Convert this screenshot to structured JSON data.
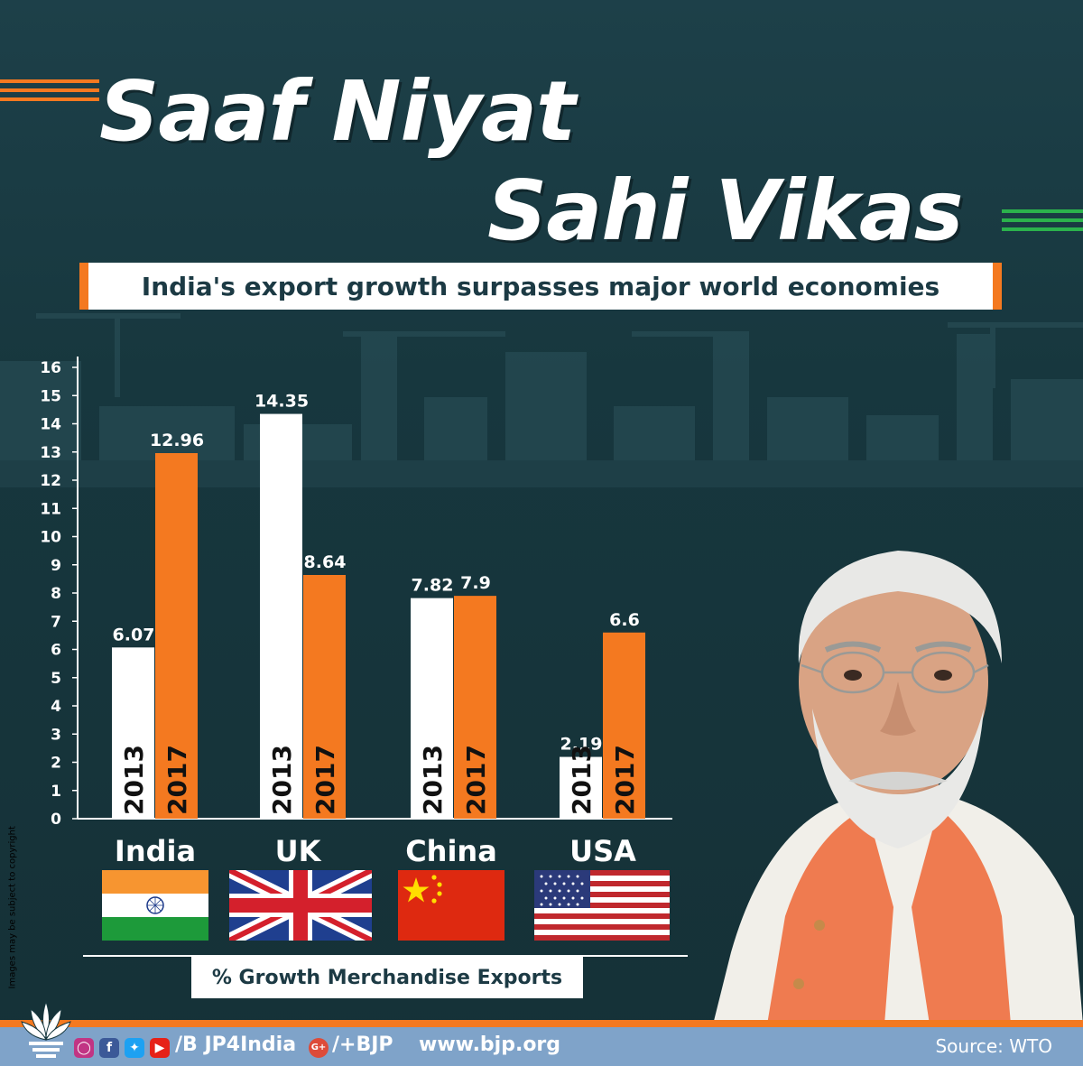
{
  "header": {
    "title_line1": "Saaf Niyat",
    "title_line2": "Sahi Vikas",
    "subtitle": "India's export growth surpasses major world economies"
  },
  "colors": {
    "background": "#17383f",
    "bar_2013": "#ffffff",
    "bar_2017": "#f47920",
    "accent_green": "#2bb24c",
    "footer": "#7fa3c9"
  },
  "chart_data": {
    "type": "bar",
    "categories": [
      "India",
      "UK",
      "China",
      "USA"
    ],
    "series": [
      {
        "name": "2013",
        "values": [
          6.07,
          14.35,
          7.82,
          2.19
        ]
      },
      {
        "name": "2017",
        "values": [
          12.96,
          8.64,
          7.9,
          6.6
        ]
      }
    ],
    "data_labels": [
      [
        "6.07",
        "14.35",
        "7.82",
        "2.19"
      ],
      [
        "12.96",
        "8.64",
        "7.9",
        "6.6"
      ]
    ],
    "xlabel": "% Growth Merchandise Exports",
    "ylabel": "",
    "ylim": [
      0,
      16
    ],
    "yticks": [
      0,
      1,
      2,
      3,
      4,
      5,
      6,
      7,
      8,
      9,
      10,
      11,
      12,
      13,
      14,
      15,
      16
    ],
    "grid": false,
    "legend": "none"
  },
  "countries": [
    "India",
    "UK",
    "China",
    "USA"
  ],
  "copyright": "Images may be subject to copyright",
  "footer": {
    "social_icons": [
      "instagram-icon",
      "facebook-icon",
      "twitter-icon",
      "youtube-icon"
    ],
    "handle": "/B JP4India",
    "gplus_handle": "/+BJP",
    "website": "www.bjp.org",
    "source": "Source: WTO"
  }
}
